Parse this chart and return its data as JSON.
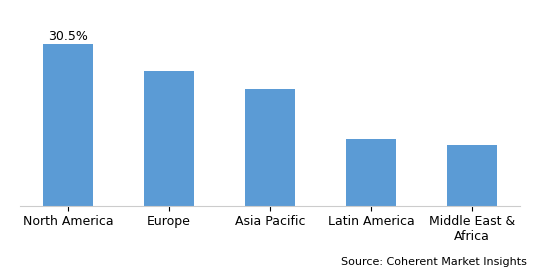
{
  "categories": [
    "North America",
    "Europe",
    "Asia Pacific",
    "Latin America",
    "Middle East &\nAfrica"
  ],
  "values": [
    30.5,
    25.5,
    22.0,
    12.5,
    11.5
  ],
  "bar_color": "#5B9BD5",
  "annotation_label": "30.5%",
  "annotation_bar_index": 0,
  "ylim": [
    0,
    36
  ],
  "background_color": "#ffffff",
  "source_text": "Source: Coherent Market Insights",
  "tick_fontsize": 9,
  "annotation_fontsize": 9,
  "source_fontsize": 8,
  "bar_width": 0.5
}
